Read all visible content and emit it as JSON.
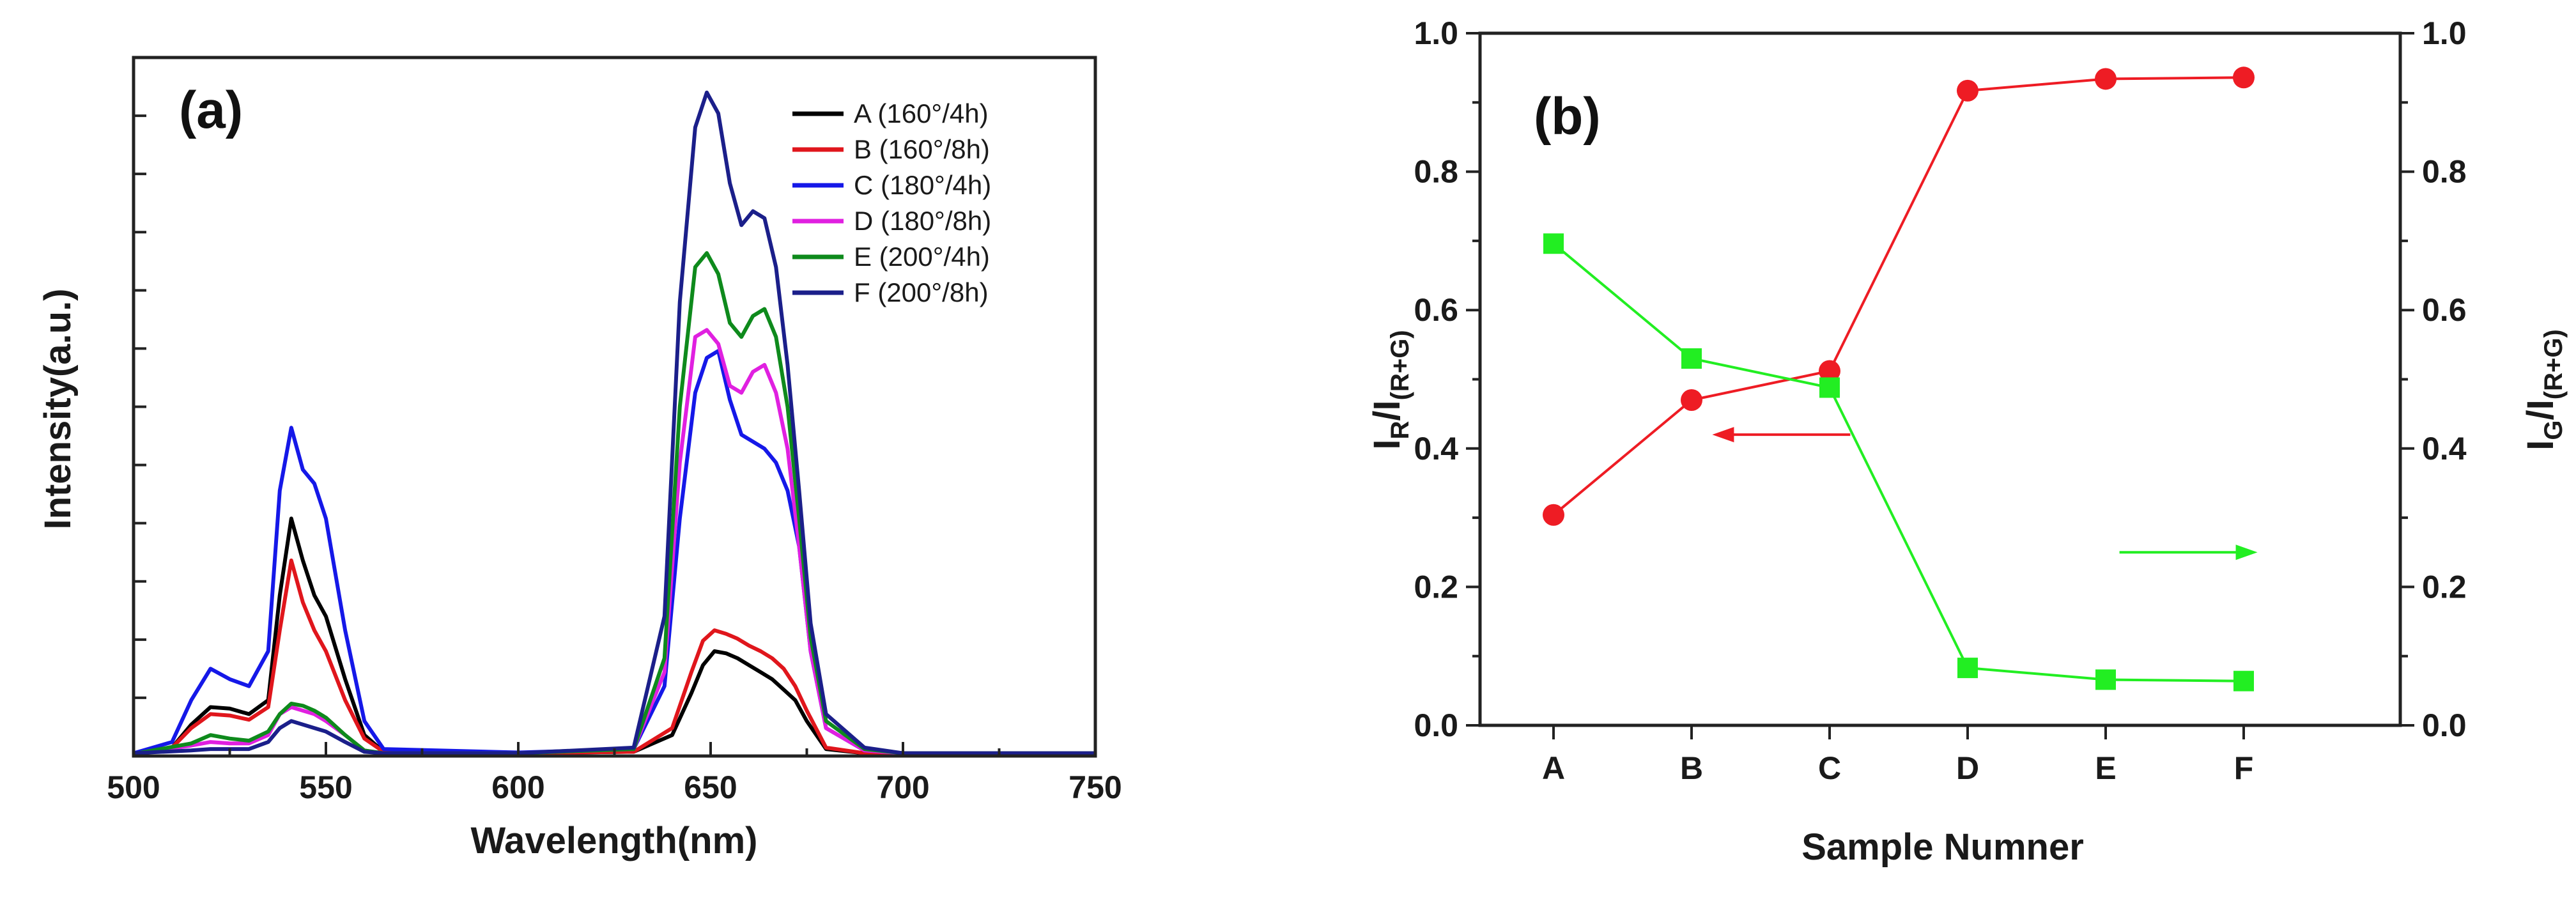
{
  "chart_data": [
    {
      "type": "line",
      "panel_label": "(a)",
      "title": "",
      "xlabel": "Wavelength(nm)",
      "ylabel": "Intensity(a.u.)",
      "xlim": [
        500,
        750
      ],
      "ylim": [
        0,
        1.0
      ],
      "x_ticks": [
        "500",
        "550",
        "600",
        "650",
        "700",
        "750"
      ],
      "y_tick_labels_shown": false,
      "legend_position": "top-right",
      "series": [
        {
          "name": "A (160°/4h)",
          "color": "#000000",
          "x": [
            500,
            510,
            515,
            520,
            525,
            530,
            535,
            538,
            541,
            544,
            547,
            550,
            555,
            560,
            565,
            600,
            630,
            640,
            645,
            648,
            651,
            654,
            657,
            660,
            663,
            666,
            669,
            672,
            675,
            680,
            690,
            700,
            750
          ],
          "y": [
            0.003,
            0.012,
            0.045,
            0.07,
            0.068,
            0.06,
            0.08,
            0.23,
            0.34,
            0.28,
            0.23,
            0.2,
            0.11,
            0.03,
            0.006,
            0.004,
            0.006,
            0.03,
            0.09,
            0.13,
            0.15,
            0.147,
            0.14,
            0.13,
            0.12,
            0.11,
            0.095,
            0.08,
            0.05,
            0.01,
            0.004,
            0.003,
            0.003
          ]
        },
        {
          "name": "B (160°/8h)",
          "color": "#e0161c",
          "x": [
            500,
            510,
            515,
            520,
            525,
            530,
            535,
            538,
            541,
            544,
            547,
            550,
            555,
            560,
            565,
            600,
            630,
            640,
            645,
            648,
            651,
            654,
            657,
            660,
            663,
            666,
            669,
            672,
            675,
            680,
            690,
            700,
            750
          ],
          "y": [
            0.003,
            0.012,
            0.04,
            0.06,
            0.058,
            0.052,
            0.07,
            0.18,
            0.28,
            0.22,
            0.18,
            0.15,
            0.08,
            0.025,
            0.006,
            0.004,
            0.006,
            0.04,
            0.12,
            0.165,
            0.18,
            0.175,
            0.168,
            0.158,
            0.15,
            0.14,
            0.125,
            0.1,
            0.065,
            0.012,
            0.004,
            0.003,
            0.003
          ]
        },
        {
          "name": "C (180°/4h)",
          "color": "#1518e8",
          "x": [
            500,
            510,
            515,
            520,
            525,
            530,
            535,
            538,
            541,
            544,
            547,
            550,
            555,
            560,
            565,
            600,
            630,
            638,
            642,
            646,
            649,
            652,
            655,
            658,
            661,
            664,
            667,
            670,
            673,
            676,
            680,
            690,
            700,
            750
          ],
          "y": [
            0.004,
            0.02,
            0.08,
            0.125,
            0.11,
            0.1,
            0.15,
            0.38,
            0.47,
            0.41,
            0.39,
            0.34,
            0.18,
            0.05,
            0.01,
            0.005,
            0.01,
            0.1,
            0.34,
            0.52,
            0.57,
            0.58,
            0.51,
            0.46,
            0.45,
            0.44,
            0.42,
            0.38,
            0.3,
            0.15,
            0.04,
            0.008,
            0.004,
            0.004
          ]
        },
        {
          "name": "D (180°/8h)",
          "color": "#e020e0",
          "x": [
            500,
            515,
            520,
            525,
            530,
            535,
            538,
            541,
            544,
            547,
            550,
            555,
            560,
            565,
            600,
            630,
            638,
            642,
            646,
            649,
            652,
            655,
            658,
            661,
            664,
            667,
            670,
            673,
            676,
            680,
            690,
            700,
            750
          ],
          "y": [
            0.003,
            0.015,
            0.02,
            0.018,
            0.018,
            0.03,
            0.06,
            0.07,
            0.065,
            0.06,
            0.05,
            0.03,
            0.008,
            0.004,
            0.004,
            0.01,
            0.12,
            0.42,
            0.6,
            0.61,
            0.59,
            0.53,
            0.52,
            0.55,
            0.56,
            0.52,
            0.44,
            0.3,
            0.15,
            0.04,
            0.008,
            0.004,
            0.004
          ]
        },
        {
          "name": "E (200°/4h)",
          "color": "#0e8a1c",
          "x": [
            500,
            515,
            520,
            525,
            530,
            535,
            538,
            541,
            544,
            547,
            550,
            555,
            560,
            565,
            600,
            630,
            638,
            642,
            646,
            649,
            652,
            655,
            658,
            661,
            664,
            667,
            670,
            673,
            676,
            680,
            690,
            700,
            750
          ],
          "y": [
            0.003,
            0.018,
            0.03,
            0.025,
            0.022,
            0.035,
            0.06,
            0.075,
            0.072,
            0.065,
            0.055,
            0.03,
            0.008,
            0.004,
            0.004,
            0.01,
            0.14,
            0.5,
            0.7,
            0.72,
            0.69,
            0.62,
            0.6,
            0.63,
            0.64,
            0.6,
            0.5,
            0.34,
            0.17,
            0.05,
            0.01,
            0.004,
            0.004
          ]
        },
        {
          "name": "F (200°/8h)",
          "color": "#1b1f8a",
          "x": [
            500,
            515,
            520,
            525,
            530,
            535,
            538,
            541,
            544,
            547,
            550,
            555,
            560,
            565,
            600,
            630,
            638,
            642,
            646,
            649,
            652,
            655,
            658,
            661,
            664,
            667,
            670,
            673,
            676,
            680,
            690,
            700,
            750
          ],
          "y": [
            0.004,
            0.008,
            0.01,
            0.01,
            0.01,
            0.02,
            0.04,
            0.05,
            0.045,
            0.04,
            0.035,
            0.02,
            0.006,
            0.004,
            0.004,
            0.012,
            0.2,
            0.65,
            0.9,
            0.95,
            0.92,
            0.82,
            0.76,
            0.78,
            0.77,
            0.7,
            0.56,
            0.38,
            0.19,
            0.06,
            0.012,
            0.004,
            0.004
          ]
        }
      ]
    },
    {
      "type": "line",
      "panel_label": "(b)",
      "title": "",
      "xlabel": "Sample  Numner",
      "ylabel_left": "I_R/I_(R+G)",
      "ylabel_right": "I_G/I_(R+G)",
      "categories": [
        "A",
        "B",
        "C",
        "D",
        "E",
        "F"
      ],
      "ylim": [
        0.0,
        1.0
      ],
      "y_ticks": [
        "0.0",
        "0.2",
        "0.4",
        "0.6",
        "0.8",
        "1.0"
      ],
      "series": [
        {
          "name": "I_R/I_(R+G)",
          "axis": "left",
          "marker": "circle",
          "color": "#ee1c24",
          "values": [
            0.304,
            0.47,
            0.512,
            0.917,
            0.934,
            0.936
          ]
        },
        {
          "name": "I_G/I_(R+G)",
          "axis": "right",
          "marker": "square",
          "color": "#22ee22",
          "values": [
            0.696,
            0.53,
            0.488,
            0.083,
            0.066,
            0.064
          ]
        }
      ],
      "annotations": [
        {
          "type": "arrow",
          "direction": "left",
          "color": "#ee1c24",
          "points_to": "left axis",
          "at_y": 0.42,
          "x_from": 2.15,
          "x_to": 1.15
        },
        {
          "type": "arrow",
          "direction": "right",
          "color": "#22ee22",
          "points_to": "right axis",
          "at_y": 0.25,
          "x_from": 4.1,
          "x_to": 5.1
        }
      ]
    }
  ]
}
